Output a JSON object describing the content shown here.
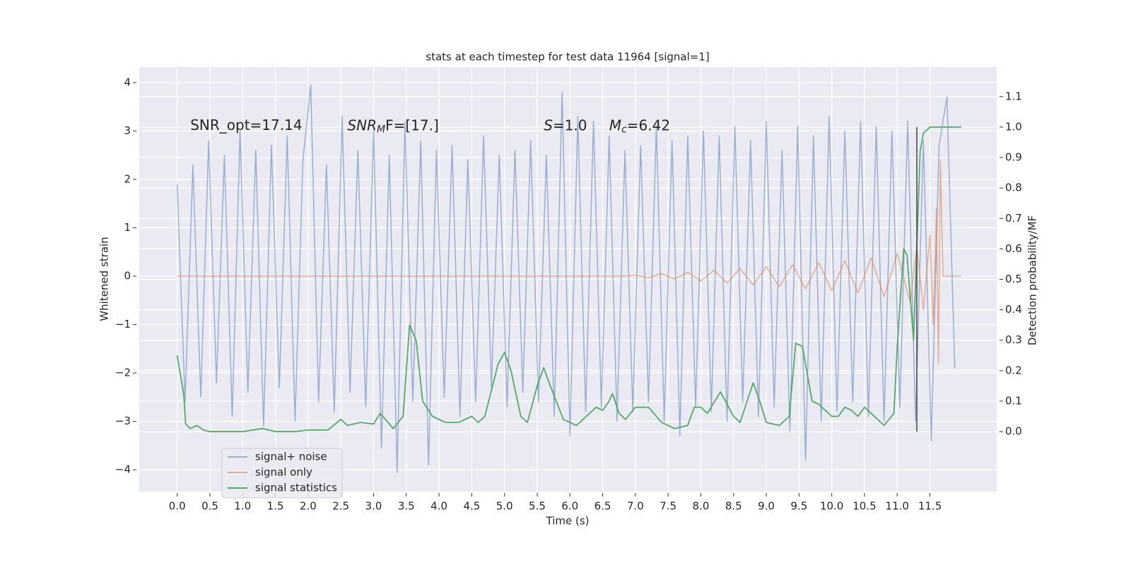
{
  "chart_data": {
    "type": "line",
    "title": "stats at each timestep for test data 11964 [signal=1]",
    "xlabel": "Time (s)",
    "ylabel": "Whitened strain",
    "y2label": "Detection probability/MF",
    "xlim": [
      -0.58,
      12.52
    ],
    "ylim": [
      -4.45,
      4.32
    ],
    "y2lim": [
      -0.197,
      1.197
    ],
    "xticks": [
      {
        "value": 0,
        "label": "0.0"
      },
      0.5,
      {
        "value": 1,
        "label": "1.0"
      },
      1.5,
      {
        "value": 2,
        "label": "2.0"
      },
      2.5,
      {
        "value": 3,
        "label": "3.0"
      },
      3.5,
      {
        "value": 4,
        "label": "4.0"
      },
      4.5,
      {
        "value": 5,
        "label": "5.0"
      },
      5.5,
      {
        "value": 6,
        "label": "6.0"
      },
      6.5,
      {
        "value": 7,
        "label": "7.0"
      },
      7.5,
      {
        "value": 8,
        "label": "8.0"
      },
      8.5,
      {
        "value": 9,
        "label": "9.0"
      },
      9.5,
      {
        "value": 10,
        "label": "10.0"
      },
      10.5,
      {
        "value": 11,
        "label": "11.0"
      },
      11.5
    ],
    "yticks": [
      {
        "value": -4,
        "label": "−4"
      },
      {
        "value": -3,
        "label": "−3"
      },
      {
        "value": -2,
        "label": "−2"
      },
      {
        "value": -1,
        "label": "−1"
      },
      0,
      1,
      2,
      3,
      4
    ],
    "y2ticks": [
      {
        "value": 0,
        "label": "0.0"
      },
      0.1,
      0.2,
      0.3,
      0.4,
      0.5,
      0.6,
      0.7,
      0.8,
      0.9,
      {
        "value": 1,
        "label": "1.0"
      },
      1.1
    ],
    "grid": true,
    "legend": "lower left",
    "annotations": [
      {
        "text": "SNR_opt=17.14",
        "x": 0.2,
        "y": 3.1
      },
      {
        "base": "SNR",
        "sub": "M",
        "rest": "F=[17.]",
        "x": 2.6,
        "y": 3.1
      },
      {
        "base": "S",
        "rest": "=1.0",
        "x": 5.6,
        "y": 3.1
      },
      {
        "base": "M",
        "sub": "c",
        "rest": "=6.42",
        "x": 6.6,
        "y": 3.1
      }
    ],
    "vline": {
      "x": 11.3,
      "ymin": 0,
      "ymax": 1,
      "axis": "y2",
      "color": "#444444"
    },
    "series": [
      {
        "name": "signal+ noise",
        "color": "#4c72b0",
        "opacity": 0.5,
        "x": [
          0,
          0.12,
          0.24,
          0.36,
          0.48,
          0.6,
          0.72,
          0.84,
          0.96,
          1.08,
          1.2,
          1.32,
          1.44,
          1.56,
          1.68,
          1.8,
          1.92,
          2.04,
          2.16,
          2.28,
          2.4,
          2.52,
          2.64,
          2.76,
          2.88,
          3.0,
          3.12,
          3.24,
          3.36,
          3.48,
          3.6,
          3.72,
          3.84,
          3.96,
          4.08,
          4.2,
          4.32,
          4.44,
          4.56,
          4.68,
          4.8,
          4.92,
          5.04,
          5.16,
          5.28,
          5.4,
          5.52,
          5.64,
          5.76,
          5.88,
          6.0,
          6.12,
          6.24,
          6.36,
          6.48,
          6.6,
          6.72,
          6.84,
          6.96,
          7.08,
          7.2,
          7.32,
          7.44,
          7.56,
          7.68,
          7.8,
          7.92,
          8.04,
          8.16,
          8.28,
          8.4,
          8.52,
          8.64,
          8.76,
          8.88,
          9.0,
          9.12,
          9.24,
          9.36,
          9.48,
          9.6,
          9.72,
          9.84,
          9.96,
          10.08,
          10.2,
          10.32,
          10.44,
          10.56,
          10.68,
          10.8,
          10.92,
          11.04,
          11.16,
          11.28,
          11.4,
          11.52,
          11.64,
          11.76,
          11.88
        ],
        "values": [
          1.9,
          -2.6,
          2.3,
          -2.5,
          2.8,
          -2.2,
          2.5,
          -2.9,
          3.0,
          -2.4,
          2.6,
          -3.1,
          2.7,
          -2.3,
          2.9,
          -3.0,
          2.4,
          3.95,
          -2.6,
          2.3,
          -2.8,
          3.3,
          -2.4,
          2.6,
          -2.7,
          3.0,
          -3.55,
          2.5,
          -4.05,
          3.2,
          -2.6,
          2.8,
          -3.9,
          2.6,
          -2.5,
          2.7,
          -2.9,
          2.4,
          -2.6,
          2.9,
          -2.3,
          2.5,
          -2.7,
          2.6,
          -2.4,
          2.8,
          -2.6,
          2.5,
          -2.9,
          3.8,
          -3.3,
          3.3,
          -2.8,
          3.2,
          -2.7,
          2.9,
          -3.0,
          2.6,
          -2.8,
          2.7,
          -2.6,
          3.1,
          -3.0,
          2.8,
          -3.3,
          2.9,
          -2.7,
          3.0,
          -2.8,
          2.9,
          -3.0,
          3.1,
          -2.6,
          2.8,
          -2.9,
          3.2,
          -2.7,
          2.6,
          -3.2,
          3.1,
          -3.8,
          2.9,
          -3.0,
          3.3,
          -2.8,
          3.0,
          -2.6,
          3.2,
          -2.9,
          3.1,
          -3.0,
          3.0,
          -2.7,
          3.2,
          -3.0,
          2.8,
          -3.4,
          2.7,
          3.7,
          -1.9
        ]
      },
      {
        "name": "signal only",
        "color": "#dd8452",
        "opacity": 0.6,
        "x": [
          0,
          6.8,
          7.0,
          7.2,
          7.4,
          7.6,
          7.8,
          8.0,
          8.2,
          8.4,
          8.6,
          8.8,
          9.0,
          9.2,
          9.4,
          9.6,
          9.8,
          10.0,
          10.2,
          10.4,
          10.6,
          10.8,
          11.0,
          11.2,
          11.3,
          11.4,
          11.5,
          11.55,
          11.6,
          11.63,
          11.66,
          11.7,
          11.98
        ],
        "values": [
          0,
          0,
          0.02,
          -0.03,
          0.05,
          -0.06,
          0.08,
          -0.1,
          0.12,
          -0.14,
          0.16,
          -0.18,
          0.2,
          -0.22,
          0.24,
          -0.26,
          0.28,
          -0.3,
          0.32,
          -0.35,
          0.38,
          -0.42,
          0.47,
          -0.55,
          0.62,
          -0.7,
          0.85,
          -1.0,
          1.4,
          -1.8,
          2.4,
          0,
          0
        ]
      },
      {
        "name": "signal statistics",
        "color": "#55a868",
        "opacity": 1,
        "axis": "y2",
        "x": [
          0,
          0.1,
          0.13,
          0.2,
          0.3,
          0.4,
          0.5,
          0.7,
          1.0,
          1.3,
          1.5,
          1.8,
          2.0,
          2.3,
          2.5,
          2.6,
          2.8,
          3.0,
          3.1,
          3.3,
          3.45,
          3.55,
          3.65,
          3.75,
          3.9,
          4.1,
          4.3,
          4.5,
          4.6,
          4.7,
          4.9,
          5.0,
          5.1,
          5.25,
          5.35,
          5.5,
          5.6,
          5.7,
          5.9,
          6.1,
          6.3,
          6.4,
          6.5,
          6.6,
          6.65,
          6.75,
          6.85,
          7.0,
          7.2,
          7.4,
          7.6,
          7.8,
          7.9,
          8.0,
          8.1,
          8.3,
          8.5,
          8.6,
          8.8,
          8.9,
          9.0,
          9.2,
          9.35,
          9.45,
          9.55,
          9.7,
          9.8,
          10.0,
          10.1,
          10.2,
          10.3,
          10.4,
          10.5,
          10.6,
          10.8,
          10.95,
          11.0,
          11.1,
          11.15,
          11.25,
          11.35,
          11.4,
          11.5,
          11.98
        ],
        "values": [
          0.25,
          0.12,
          0.025,
          0.01,
          0.02,
          0.005,
          0,
          0,
          0,
          0.01,
          0,
          0,
          0.005,
          0.005,
          0.04,
          0.02,
          0.03,
          0.025,
          0.06,
          0.01,
          0.05,
          0.35,
          0.3,
          0.1,
          0.05,
          0.03,
          0.03,
          0.05,
          0.03,
          0.05,
          0.22,
          0.26,
          0.2,
          0.05,
          0.03,
          0.15,
          0.21,
          0.15,
          0.04,
          0.02,
          0.06,
          0.08,
          0.07,
          0.1,
          0.125,
          0.06,
          0.04,
          0.08,
          0.08,
          0.03,
          0.01,
          0.02,
          0.08,
          0.08,
          0.06,
          0.13,
          0.05,
          0.03,
          0.16,
          0.1,
          0.03,
          0.02,
          0.05,
          0.29,
          0.28,
          0.1,
          0.09,
          0.05,
          0.05,
          0.08,
          0.07,
          0.05,
          0.08,
          0.06,
          0.02,
          0.06,
          0.28,
          0.6,
          0.58,
          0.3,
          0.92,
          0.98,
          1.0,
          1.0
        ]
      }
    ]
  }
}
